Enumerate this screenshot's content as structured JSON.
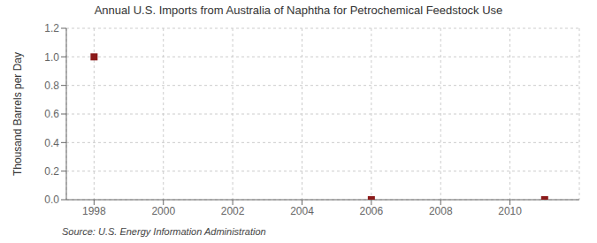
{
  "chart_data": {
    "type": "scatter",
    "title": "Annual U.S. Imports from Australia of Naphtha for Petrochemical Feedstock Use",
    "ylabel": "Thousand Barrels per Day",
    "annotations": [
      "Source: U.S. Energy Information Administration"
    ],
    "x": [
      1998,
      2006,
      2011
    ],
    "values": [
      1.0,
      0.0,
      0.0
    ],
    "color": "#8B1A1A",
    "marker": "square",
    "xlim": [
      1997.2,
      2012.0
    ],
    "ylim": [
      0.0,
      1.2
    ],
    "xticks": [
      1998,
      2000,
      2002,
      2004,
      2006,
      2008,
      2010
    ],
    "yticks": [
      {
        "value": 0.0,
        "label": "0.0"
      },
      0.2,
      0.4,
      0.6,
      0.8,
      {
        "value": 1.0,
        "label": "1.0"
      },
      1.2
    ],
    "grid": true
  }
}
